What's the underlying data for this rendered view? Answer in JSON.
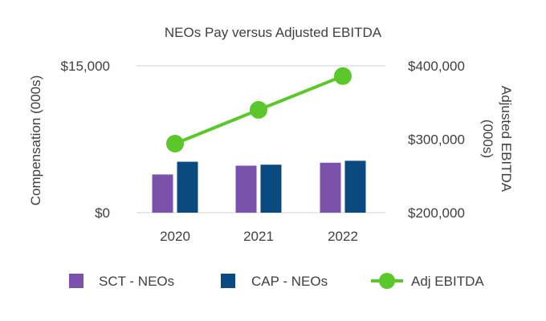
{
  "chart_data": {
    "type": "bar",
    "title": "NEOs Pay versus Adjusted EBITDA",
    "categories": [
      "2020",
      "2021",
      "2022"
    ],
    "ylabel": "Compensation (000s)",
    "ylim": [
      0,
      15000
    ],
    "y_ticks": [
      "$15,000",
      "$0"
    ],
    "y2label_lines": [
      "Adjusted EBITDA",
      "(000s)"
    ],
    "y2lim": [
      200000,
      400000
    ],
    "y2_ticks": [
      "$400,000",
      "$300,000",
      "$200,000"
    ],
    "series": [
      {
        "name": "SCT - NEOs",
        "type": "bar",
        "axis": "left",
        "color": "#7B52AB",
        "values": [
          3900,
          4800,
          5100
        ]
      },
      {
        "name": "CAP - NEOs",
        "type": "bar",
        "axis": "left",
        "color": "#0B4A80",
        "values": [
          5200,
          4900,
          5300
        ]
      },
      {
        "name": "Adj EBITDA",
        "type": "line",
        "axis": "right",
        "color": "#5CC72B",
        "values": [
          294000,
          340000,
          386000
        ]
      }
    ],
    "legend_position": "bottom",
    "grid": false
  }
}
